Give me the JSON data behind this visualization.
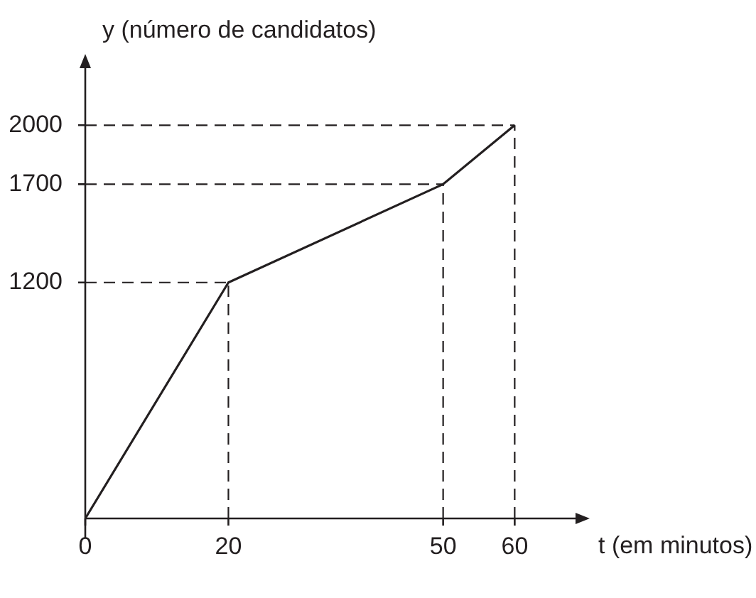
{
  "chart_data": {
    "type": "line",
    "xlabel": "t (em minutos)",
    "ylabel": "y (número de candidatos)",
    "x": [
      0,
      20,
      50,
      60
    ],
    "series": [
      {
        "color": "#231f20",
        "values": [
          0,
          1200,
          1700,
          2000
        ]
      }
    ],
    "xlim": [
      0,
      68.5
    ],
    "ylim": [
      0,
      2290
    ],
    "xticks": [
      0,
      20,
      50,
      60
    ],
    "yticks": [
      1200,
      1700,
      2000
    ],
    "ref_lines": [
      {
        "axis": "x",
        "value": 20,
        "line_style": "dashed"
      },
      {
        "axis": "x",
        "value": 50,
        "line_style": "dashed"
      },
      {
        "axis": "x",
        "value": 60,
        "line_style": "dashed"
      },
      {
        "axis": "y",
        "value": 1200,
        "line_style": "dashed"
      },
      {
        "axis": "y",
        "value": 1700,
        "line_style": "dashed"
      },
      {
        "axis": "y",
        "value": 2000,
        "line_style": "dashed"
      }
    ],
    "legend": false,
    "marker": "none",
    "line_style": "solid"
  }
}
